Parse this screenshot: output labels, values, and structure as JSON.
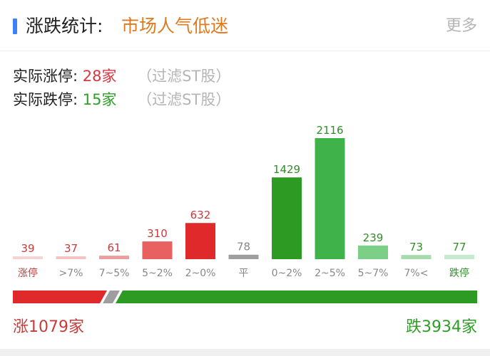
{
  "header": {
    "title": "涨跌统计:",
    "sentiment": "市场人气低迷",
    "more_label": "更多",
    "accent_color": "#3b82f6"
  },
  "stats": {
    "limit_up_label": "实际涨停:",
    "limit_up_value": "28家",
    "limit_up_note": "（过滤ST股）",
    "limit_down_label": "实际跌停:",
    "limit_down_value": "15家",
    "limit_down_note": "（过滤ST股）"
  },
  "chart_data": {
    "type": "bar",
    "categories": [
      "涨停",
      ">7%",
      "7~5%",
      "5~2%",
      "2~0%",
      "平",
      "0~2%",
      "2~5%",
      "5~7%",
      "7%<",
      "跌停"
    ],
    "values": [
      39,
      37,
      61,
      310,
      632,
      78,
      1429,
      2116,
      239,
      73,
      77
    ],
    "bar_colors": [
      "#f6d4d4",
      "#f3c3c3",
      "#ec9d9d",
      "#e86060",
      "#e0292b",
      "#9e9e9e",
      "#2d9a24",
      "#3fb34a",
      "#7ccf86",
      "#a6dcac",
      "#c6ead0"
    ],
    "value_colors": [
      "#c73b3b",
      "#c73b3b",
      "#c73b3b",
      "#c73b3b",
      "#c73b3b",
      "#888888",
      "#2f8f27",
      "#2f8f27",
      "#2f8f27",
      "#2f8f27",
      "#2f8f27"
    ],
    "label_colors": [
      "#c73b3b",
      "#888888",
      "#888888",
      "#888888",
      "#888888",
      "#888888",
      "#888888",
      "#888888",
      "#888888",
      "#888888",
      "#2f8f27"
    ]
  },
  "summary": {
    "up_text": "涨1079家",
    "down_text": "跌3934家",
    "up_count": 1079,
    "down_count": 3934,
    "up_color": "#e0292b",
    "down_color": "#2d9a24",
    "flat_color": "#9e9e9e"
  }
}
